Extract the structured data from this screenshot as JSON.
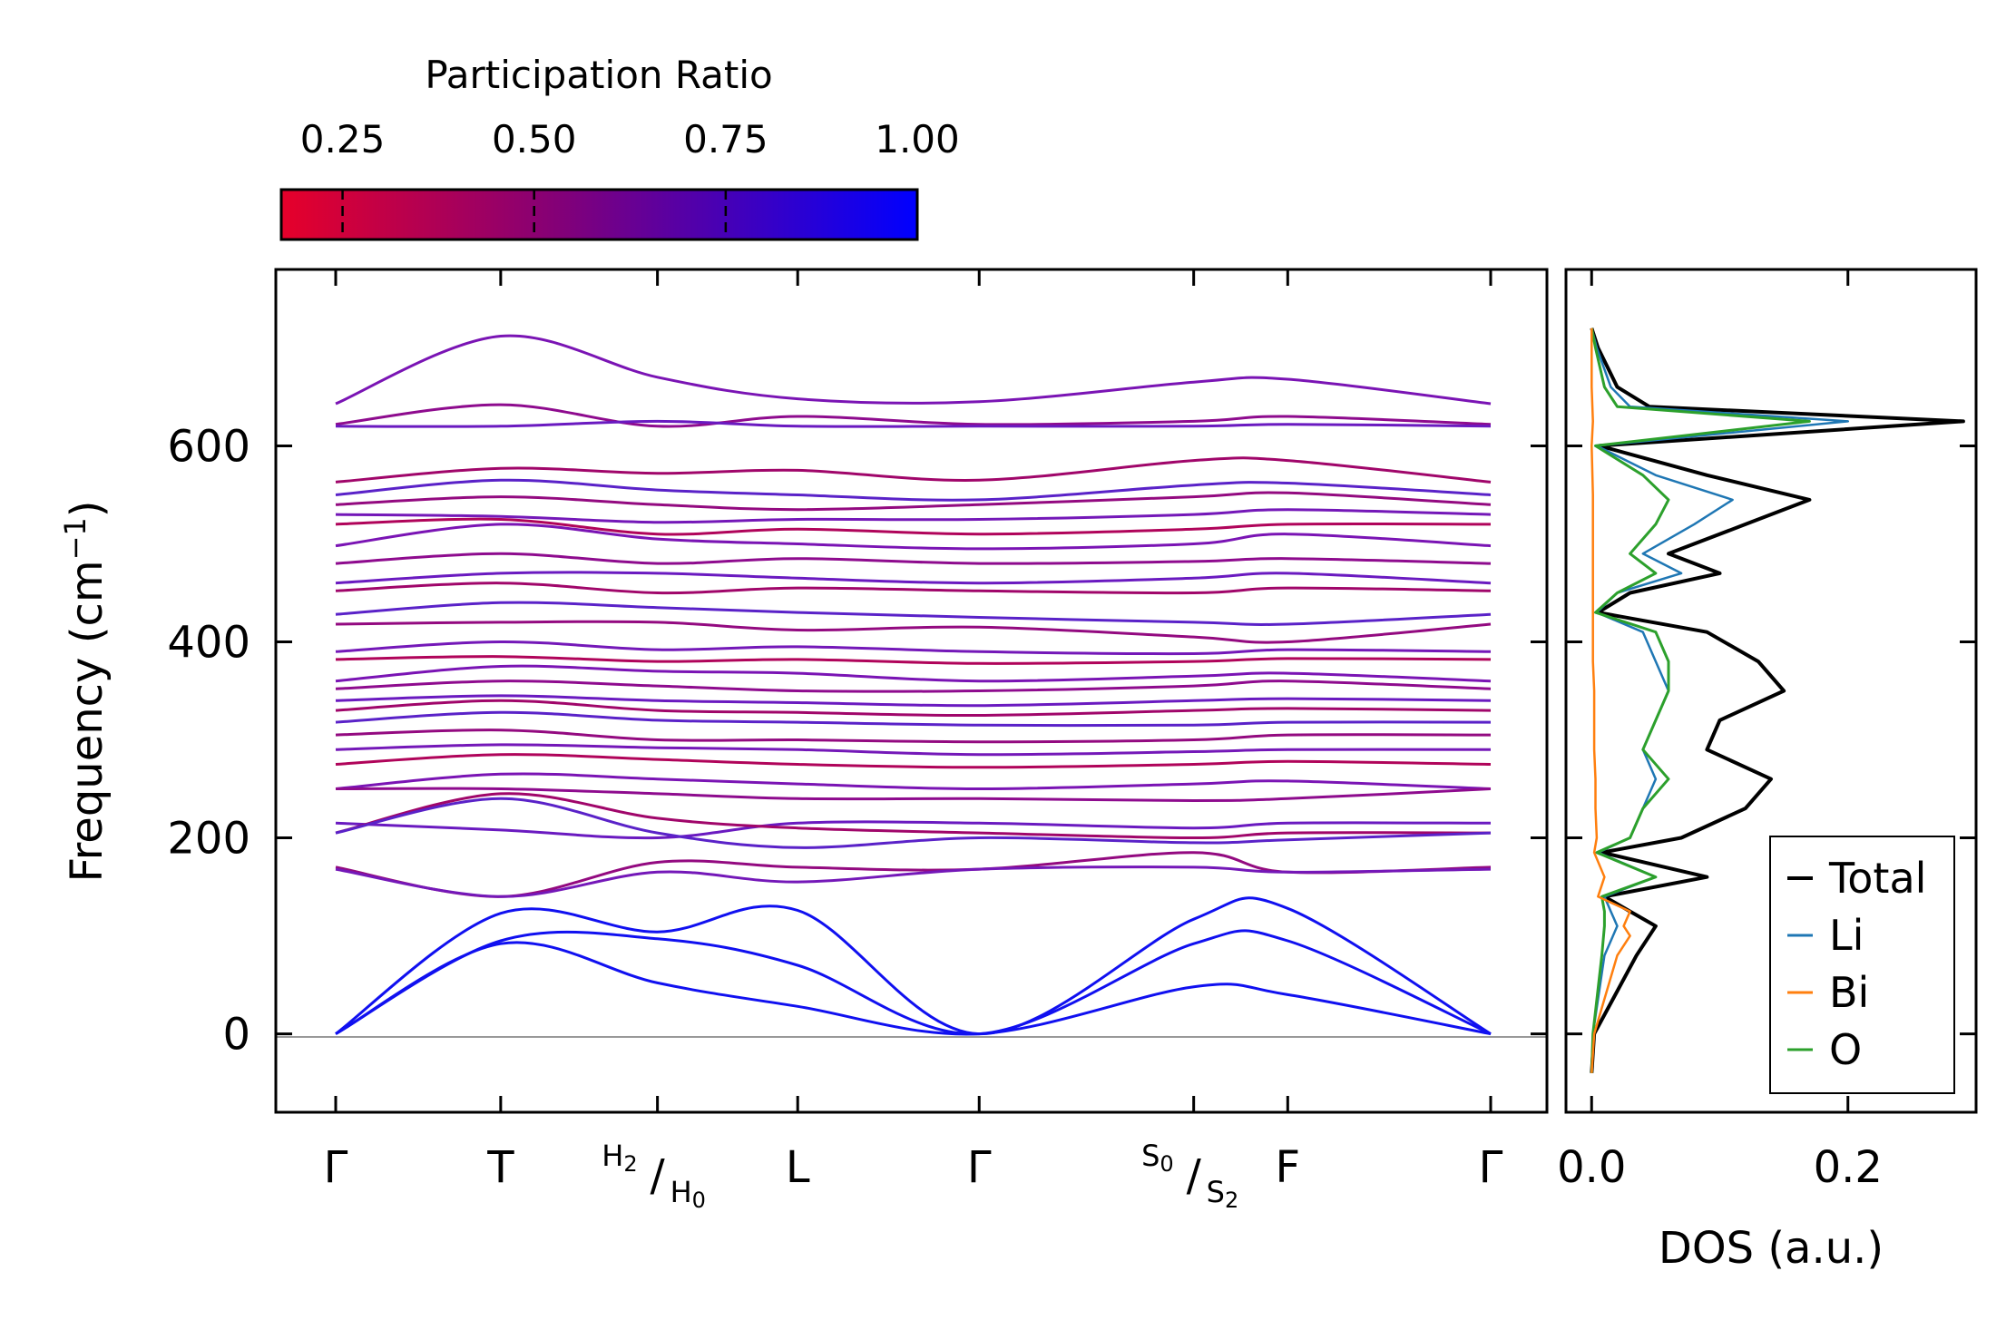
{
  "chart_data": [
    {
      "type": "line",
      "subtype": "phonon-band-structure",
      "ylabel": "Frequency (cm⁻¹)",
      "ylim": [
        -80,
        780
      ],
      "yticks": [
        0,
        200,
        400,
        600
      ],
      "color_by": "Participation Ratio",
      "xticks": [
        {
          "pos": 0.0,
          "label": "Γ"
        },
        {
          "pos": 1.0,
          "label": "T"
        },
        {
          "pos": 1.95,
          "label": "",
          "num": "H",
          "num_sub": "2",
          "den": "H",
          "den_sub": "0"
        },
        {
          "pos": 2.8,
          "label": "L"
        },
        {
          "pos": 3.9,
          "label": "Γ"
        },
        {
          "pos": 5.2,
          "label": "",
          "num": "S",
          "num_sub": "0",
          "den": "S",
          "den_sub": "2"
        },
        {
          "pos": 5.77,
          "label": "F"
        },
        {
          "pos": 7.0,
          "label": "Γ"
        }
      ],
      "acoustic_branches": [
        {
          "x": [
            0,
            1,
            1.95,
            2.8,
            3.9,
            5.2,
            5.77,
            7.0
          ],
          "y": [
            0,
            123,
            104,
            126,
            0,
            117,
            128,
            0
          ]
        },
        {
          "x": [
            0,
            1,
            1.95,
            2.8,
            3.9,
            5.2,
            5.77,
            7.0
          ],
          "y": [
            0,
            95,
            97,
            70,
            0,
            92,
            95,
            0
          ]
        },
        {
          "x": [
            0,
            1,
            1.95,
            2.8,
            3.9,
            5.2,
            5.77,
            7.0
          ],
          "y": [
            0,
            92,
            52,
            28,
            0,
            48,
            40,
            0
          ]
        }
      ],
      "optical_branches": [
        {
          "x": [
            0,
            1,
            1.95,
            2.8,
            3.9,
            5.2,
            5.77,
            7.0
          ],
          "y": [
            643,
            712,
            670,
            648,
            645,
            665,
            668,
            643
          ]
        },
        {
          "x": [
            0,
            1,
            1.95,
            2.8,
            3.9,
            5.2,
            5.77,
            7.0
          ],
          "y": [
            622,
            642,
            620,
            630,
            622,
            625,
            630,
            622
          ]
        },
        {
          "x": [
            0,
            1,
            1.95,
            2.8,
            3.9,
            5.2,
            5.77,
            7.0
          ],
          "y": [
            620,
            620,
            625,
            620,
            620,
            620,
            622,
            620
          ]
        },
        {
          "x": [
            0,
            1,
            1.95,
            2.8,
            3.9,
            5.2,
            5.77,
            7.0
          ],
          "y": [
            563,
            577,
            572,
            575,
            565,
            585,
            585,
            563
          ]
        },
        {
          "x": [
            0,
            1,
            1.95,
            2.8,
            3.9,
            5.2,
            5.77,
            7.0
          ],
          "y": [
            550,
            565,
            555,
            550,
            545,
            560,
            562,
            550
          ]
        },
        {
          "x": [
            0,
            1,
            1.95,
            2.8,
            3.9,
            5.2,
            5.77,
            7.0
          ],
          "y": [
            540,
            548,
            540,
            535,
            540,
            548,
            552,
            540
          ]
        },
        {
          "x": [
            0,
            1,
            1.95,
            2.8,
            3.9,
            5.2,
            5.77,
            7.0
          ],
          "y": [
            530,
            528,
            522,
            525,
            525,
            530,
            535,
            530
          ]
        },
        {
          "x": [
            0,
            1,
            1.95,
            2.8,
            3.9,
            5.2,
            5.77,
            7.0
          ],
          "y": [
            520,
            525,
            510,
            515,
            510,
            515,
            520,
            520
          ]
        },
        {
          "x": [
            0,
            1,
            1.95,
            2.8,
            3.9,
            5.2,
            5.77,
            7.0
          ],
          "y": [
            498,
            520,
            505,
            500,
            495,
            500,
            510,
            498
          ]
        },
        {
          "x": [
            0,
            1,
            1.95,
            2.8,
            3.9,
            5.2,
            5.77,
            7.0
          ],
          "y": [
            480,
            490,
            480,
            485,
            480,
            482,
            485,
            480
          ]
        },
        {
          "x": [
            0,
            1,
            1.95,
            2.8,
            3.9,
            5.2,
            5.77,
            7.0
          ],
          "y": [
            460,
            470,
            470,
            465,
            460,
            465,
            470,
            460
          ]
        },
        {
          "x": [
            0,
            1,
            1.95,
            2.8,
            3.9,
            5.2,
            5.77,
            7.0
          ],
          "y": [
            452,
            460,
            450,
            455,
            452,
            450,
            455,
            452
          ]
        },
        {
          "x": [
            0,
            1,
            1.95,
            2.8,
            3.9,
            5.2,
            5.77,
            7.0
          ],
          "y": [
            428,
            440,
            435,
            430,
            425,
            420,
            418,
            428
          ]
        },
        {
          "x": [
            0,
            1,
            1.95,
            2.8,
            3.9,
            5.2,
            5.77,
            7.0
          ],
          "y": [
            418,
            420,
            420,
            412,
            415,
            405,
            400,
            418
          ]
        },
        {
          "x": [
            0,
            1,
            1.95,
            2.8,
            3.9,
            5.2,
            5.77,
            7.0
          ],
          "y": [
            390,
            400,
            392,
            395,
            390,
            388,
            392,
            390
          ]
        },
        {
          "x": [
            0,
            1,
            1.95,
            2.8,
            3.9,
            5.2,
            5.77,
            7.0
          ],
          "y": [
            382,
            385,
            380,
            382,
            378,
            380,
            383,
            382
          ]
        },
        {
          "x": [
            0,
            1,
            1.95,
            2.8,
            3.9,
            5.2,
            5.77,
            7.0
          ],
          "y": [
            360,
            375,
            370,
            368,
            360,
            365,
            368,
            360
          ]
        },
        {
          "x": [
            0,
            1,
            1.95,
            2.8,
            3.9,
            5.2,
            5.77,
            7.0
          ],
          "y": [
            352,
            360,
            355,
            350,
            350,
            355,
            360,
            352
          ]
        },
        {
          "x": [
            0,
            1,
            1.95,
            2.8,
            3.9,
            5.2,
            5.77,
            7.0
          ],
          "y": [
            340,
            345,
            340,
            338,
            335,
            340,
            342,
            340
          ]
        },
        {
          "x": [
            0,
            1,
            1.95,
            2.8,
            3.9,
            5.2,
            5.77,
            7.0
          ],
          "y": [
            330,
            340,
            330,
            328,
            325,
            330,
            332,
            330
          ]
        },
        {
          "x": [
            0,
            1,
            1.95,
            2.8,
            3.9,
            5.2,
            5.77,
            7.0
          ],
          "y": [
            318,
            328,
            320,
            318,
            315,
            315,
            318,
            318
          ]
        },
        {
          "x": [
            0,
            1,
            1.95,
            2.8,
            3.9,
            5.2,
            5.77,
            7.0
          ],
          "y": [
            305,
            310,
            300,
            300,
            298,
            300,
            305,
            305
          ]
        },
        {
          "x": [
            0,
            1,
            1.95,
            2.8,
            3.9,
            5.2,
            5.77,
            7.0
          ],
          "y": [
            290,
            295,
            292,
            290,
            285,
            288,
            290,
            290
          ]
        },
        {
          "x": [
            0,
            1,
            1.95,
            2.8,
            3.9,
            5.2,
            5.77,
            7.0
          ],
          "y": [
            275,
            285,
            280,
            275,
            272,
            275,
            278,
            275
          ]
        },
        {
          "x": [
            0,
            1,
            1.95,
            2.8,
            3.9,
            5.2,
            5.77,
            7.0
          ],
          "y": [
            250,
            265,
            260,
            255,
            250,
            255,
            258,
            250
          ]
        },
        {
          "x": [
            0,
            1,
            1.95,
            2.8,
            3.9,
            5.2,
            5.77,
            7.0
          ],
          "y": [
            250,
            250,
            245,
            240,
            240,
            238,
            240,
            250
          ]
        },
        {
          "x": [
            0,
            1,
            1.95,
            2.8,
            3.9,
            5.2,
            5.77,
            7.0
          ],
          "y": [
            215,
            208,
            200,
            215,
            215,
            210,
            215,
            215
          ]
        },
        {
          "x": [
            0,
            1,
            1.95,
            2.8,
            3.9,
            5.2,
            5.77,
            7.0
          ],
          "y": [
            205,
            245,
            220,
            210,
            205,
            200,
            205,
            205
          ]
        },
        {
          "x": [
            0,
            1,
            1.95,
            2.8,
            3.9,
            5.2,
            5.77,
            7.0
          ],
          "y": [
            205,
            240,
            205,
            190,
            200,
            195,
            198,
            205
          ]
        },
        {
          "x": [
            0,
            1,
            1.95,
            2.8,
            3.9,
            5.2,
            5.77,
            7.0
          ],
          "y": [
            170,
            140,
            175,
            170,
            168,
            185,
            165,
            170
          ]
        },
        {
          "x": [
            0,
            1,
            1.95,
            2.8,
            3.9,
            5.2,
            5.77,
            7.0
          ],
          "y": [
            168,
            140,
            165,
            155,
            168,
            170,
            165,
            168
          ]
        }
      ],
      "colorbar": {
        "label": "Participation Ratio",
        "range": [
          0.17,
          1.0
        ],
        "ticks": [
          "0.25",
          "0.50",
          "0.75",
          "1.00"
        ],
        "color_low": "#e6002a",
        "color_mid": "#80007a",
        "color_high": "#0000ff"
      }
    },
    {
      "type": "line",
      "subtype": "density-of-states",
      "xlabel": "DOS (a.u.)",
      "xlim": [
        -0.02,
        0.3
      ],
      "xticks": [
        "0.0",
        "0.2"
      ],
      "orientation": "horizontal-values",
      "series": [
        {
          "name": "Total",
          "color": "#000000",
          "freq": [
            -40,
            0,
            80,
            110,
            125,
            140,
            160,
            185,
            200,
            230,
            260,
            290,
            320,
            350,
            380,
            410,
            430,
            450,
            470,
            490,
            520,
            545,
            570,
            600,
            625,
            640,
            660,
            700,
            720
          ],
          "dos": [
            0,
            0.002,
            0.035,
            0.05,
            0.03,
            0.01,
            0.09,
            0.008,
            0.07,
            0.12,
            0.14,
            0.09,
            0.1,
            0.15,
            0.13,
            0.09,
            0.005,
            0.03,
            0.1,
            0.06,
            0.12,
            0.17,
            0.09,
            0.006,
            0.29,
            0.045,
            0.02,
            0.005,
            0
          ]
        },
        {
          "name": "Li",
          "color": "#1f77b4",
          "freq": [
            -40,
            0,
            80,
            110,
            125,
            140,
            160,
            185,
            200,
            230,
            260,
            290,
            320,
            350,
            380,
            410,
            430,
            450,
            470,
            490,
            520,
            545,
            570,
            600,
            625,
            640,
            660,
            700,
            720
          ],
          "dos": [
            0,
            0.001,
            0.01,
            0.02,
            0.015,
            0.01,
            0.05,
            0.005,
            0.03,
            0.04,
            0.05,
            0.04,
            0.05,
            0.06,
            0.05,
            0.04,
            0.004,
            0.02,
            0.07,
            0.04,
            0.08,
            0.11,
            0.05,
            0.004,
            0.2,
            0.03,
            0.015,
            0.004,
            0
          ]
        },
        {
          "name": "Bi",
          "color": "#ff7f0e",
          "freq": [
            -40,
            0,
            80,
            100,
            110,
            125,
            140,
            160,
            185,
            200,
            230,
            260,
            290,
            320,
            350,
            380,
            410,
            450,
            500,
            550,
            600,
            625,
            660,
            720
          ],
          "dos": [
            0,
            0.002,
            0.02,
            0.03,
            0.025,
            0.03,
            0.005,
            0.01,
            0.002,
            0.004,
            0.003,
            0.003,
            0.002,
            0.002,
            0.002,
            0.001,
            0.001,
            0.001,
            0.001,
            0.001,
            0.0,
            0.001,
            0.0,
            0
          ]
        },
        {
          "name": "O",
          "color": "#2ca02c",
          "freq": [
            -40,
            0,
            80,
            110,
            125,
            140,
            160,
            185,
            200,
            230,
            260,
            290,
            320,
            350,
            380,
            410,
            430,
            450,
            470,
            490,
            520,
            545,
            570,
            600,
            625,
            640,
            660,
            700,
            720
          ],
          "dos": [
            0,
            0.001,
            0.008,
            0.01,
            0.01,
            0.008,
            0.05,
            0.004,
            0.03,
            0.04,
            0.06,
            0.04,
            0.05,
            0.06,
            0.06,
            0.05,
            0.003,
            0.02,
            0.05,
            0.03,
            0.05,
            0.06,
            0.04,
            0.003,
            0.17,
            0.02,
            0.01,
            0.003,
            0
          ]
        }
      ],
      "legend_position": "bottom-right"
    }
  ],
  "labels": {
    "ylabel": "Frequency (cm",
    "ylabel_sup": "−1",
    "ylabel_close": ")",
    "dos_xlabel": "DOS (a.u.)",
    "colorbar_title": "Participation Ratio",
    "cb_ticks": [
      "0.25",
      "0.50",
      "0.75",
      "1.00"
    ],
    "band_yticks": [
      "0",
      "200",
      "400",
      "600"
    ],
    "dos_xticks": [
      "0.0",
      "0.2"
    ],
    "legend": [
      "Total",
      "Li",
      "Bi",
      "O"
    ]
  }
}
